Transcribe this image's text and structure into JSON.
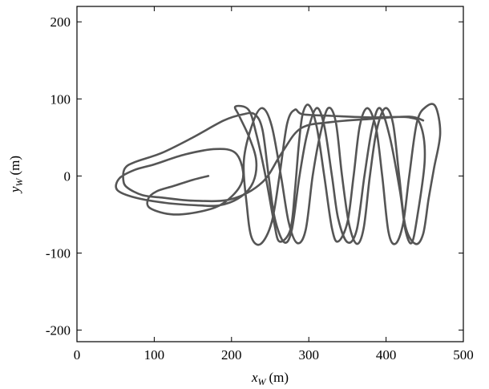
{
  "chart_data": {
    "type": "line",
    "title": "",
    "xlabel": {
      "var": "x",
      "sub": "W",
      "unit": "(m)"
    },
    "ylabel": {
      "var": "y",
      "sub": "W",
      "unit": "(m)"
    },
    "xlim": [
      0,
      500
    ],
    "ylim": [
      -215,
      220
    ],
    "xticks": [
      0,
      100,
      200,
      300,
      400,
      500
    ],
    "yticks": [
      -200,
      -100,
      0,
      100,
      200
    ],
    "grid": false,
    "legend": "none",
    "line_color": "#555555",
    "series": [
      {
        "points": [
          [
            170,
            0
          ],
          [
            150,
            -5
          ],
          [
            125,
            -13
          ],
          [
            103,
            -20
          ],
          [
            92,
            -30
          ],
          [
            95,
            -42
          ],
          [
            125,
            -50
          ],
          [
            165,
            -45
          ],
          [
            190,
            -35
          ],
          [
            210,
            -15
          ],
          [
            215,
            5
          ],
          [
            205,
            30
          ],
          [
            180,
            35
          ],
          [
            140,
            28
          ],
          [
            100,
            15
          ],
          [
            75,
            8
          ],
          [
            55,
            -3
          ],
          [
            52,
            -18
          ],
          [
            75,
            -28
          ],
          [
            115,
            -35
          ],
          [
            155,
            -38
          ],
          [
            185,
            -38
          ],
          [
            212,
            -27
          ],
          [
            228,
            -8
          ],
          [
            232,
            20
          ],
          [
            223,
            50
          ],
          [
            210,
            78
          ],
          [
            205,
            90
          ],
          [
            222,
            86
          ],
          [
            232,
            55
          ],
          [
            244,
            0
          ],
          [
            255,
            -60
          ],
          [
            262,
            -85
          ],
          [
            276,
            -70
          ],
          [
            282,
            -20
          ],
          [
            287,
            40
          ],
          [
            292,
            80
          ],
          [
            300,
            92
          ],
          [
            310,
            65
          ],
          [
            320,
            0
          ],
          [
            330,
            -68
          ],
          [
            338,
            -85
          ],
          [
            350,
            -60
          ],
          [
            358,
            0
          ],
          [
            366,
            65
          ],
          [
            376,
            88
          ],
          [
            387,
            62
          ],
          [
            395,
            0
          ],
          [
            403,
            -72
          ],
          [
            412,
            -88
          ],
          [
            422,
            -62
          ],
          [
            430,
            0
          ],
          [
            440,
            70
          ],
          [
            452,
            90
          ],
          [
            464,
            90
          ],
          [
            470,
            55
          ],
          [
            462,
            10
          ],
          [
            455,
            -30
          ],
          [
            448,
            -75
          ],
          [
            438,
            -88
          ],
          [
            425,
            -65
          ],
          [
            417,
            0
          ],
          [
            409,
            68
          ],
          [
            399,
            88
          ],
          [
            388,
            60
          ],
          [
            379,
            0
          ],
          [
            371,
            -68
          ],
          [
            362,
            -88
          ],
          [
            352,
            -62
          ],
          [
            343,
            0
          ],
          [
            335,
            70
          ],
          [
            325,
            88
          ],
          [
            315,
            55
          ],
          [
            305,
            0
          ],
          [
            296,
            -70
          ],
          [
            285,
            -87
          ],
          [
            274,
            -60
          ],
          [
            264,
            0
          ],
          [
            252,
            65
          ],
          [
            240,
            88
          ],
          [
            228,
            70
          ],
          [
            216,
            20
          ],
          [
            220,
            -40
          ],
          [
            226,
            -80
          ],
          [
            238,
            -88
          ],
          [
            252,
            -60
          ],
          [
            262,
            0
          ],
          [
            272,
            68
          ],
          [
            282,
            86
          ],
          [
            292,
            80
          ],
          [
            330,
            78
          ],
          [
            380,
            76
          ],
          [
            430,
            76
          ],
          [
            445,
            65
          ],
          [
            450,
            20
          ],
          [
            440,
            -55
          ],
          [
            433,
            -87
          ],
          [
            425,
            -70
          ],
          [
            418,
            -20
          ],
          [
            405,
            50
          ],
          [
            392,
            88
          ],
          [
            382,
            62
          ],
          [
            372,
            0
          ],
          [
            362,
            -70
          ],
          [
            350,
            -86
          ],
          [
            338,
            -55
          ],
          [
            330,
            0
          ],
          [
            320,
            65
          ],
          [
            310,
            88
          ],
          [
            298,
            55
          ],
          [
            288,
            0
          ],
          [
            278,
            -70
          ],
          [
            268,
            -86
          ],
          [
            256,
            -55
          ],
          [
            248,
            0
          ],
          [
            240,
            60
          ],
          [
            230,
            80
          ],
          [
            215,
            80
          ],
          [
            190,
            72
          ],
          [
            150,
            50
          ],
          [
            110,
            30
          ],
          [
            75,
            18
          ],
          [
            62,
            10
          ],
          [
            60,
            -5
          ],
          [
            65,
            -15
          ],
          [
            85,
            -25
          ],
          [
            110,
            -28
          ],
          [
            150,
            -32
          ],
          [
            200,
            -30
          ],
          [
            240,
            -8
          ],
          [
            265,
            30
          ],
          [
            290,
            62
          ],
          [
            330,
            70
          ],
          [
            380,
            74
          ],
          [
            430,
            77
          ],
          [
            448,
            72
          ]
        ]
      }
    ]
  }
}
